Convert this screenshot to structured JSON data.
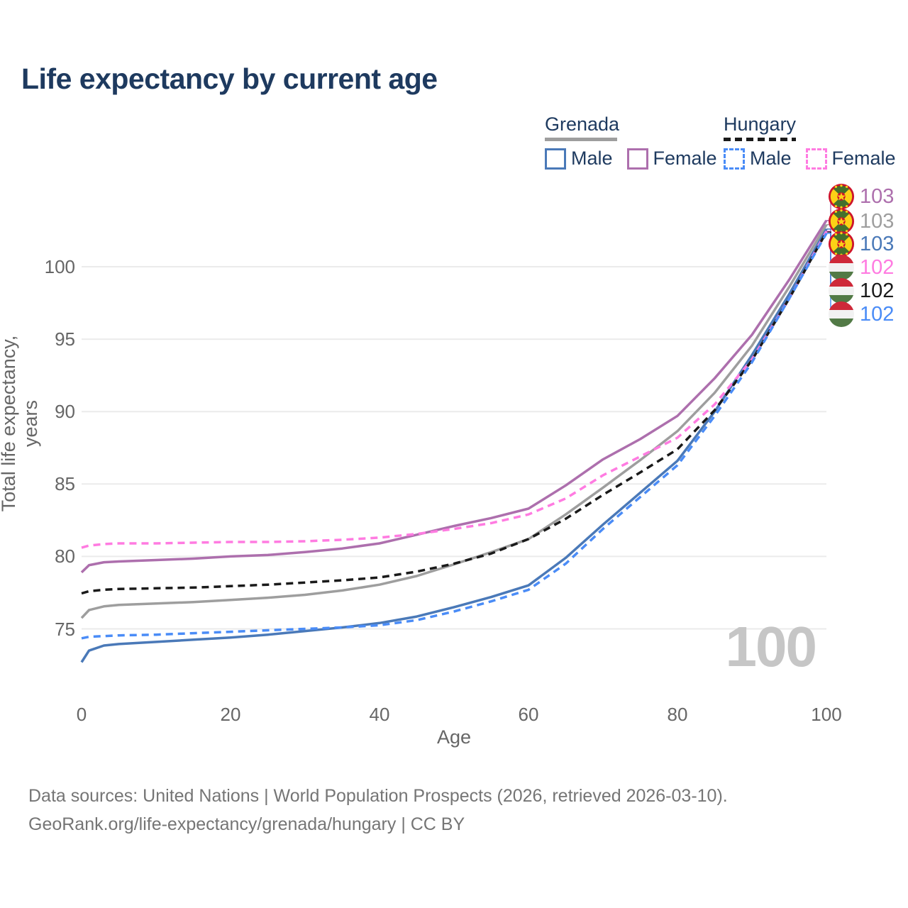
{
  "header": {
    "title": "Life expectancy by current age"
  },
  "legend": {
    "groups": [
      {
        "country": "Grenada",
        "underline_style": "solid",
        "underline_color": "#9e9e9e",
        "items": [
          {
            "label": "Male",
            "color": "#4a79b8",
            "dash": false
          },
          {
            "label": "Female",
            "color": "#ad6fad",
            "dash": false
          }
        ]
      },
      {
        "country": "Hungary",
        "underline_style": "dashed",
        "underline_color": "#1a1a1a",
        "items": [
          {
            "label": "Male",
            "color": "#4a8cf7",
            "dash": true
          },
          {
            "label": "Female",
            "color": "#ff7be1",
            "dash": true
          }
        ]
      }
    ]
  },
  "watermark": {
    "age_counter": "100"
  },
  "footer": {
    "line1": "Data sources: United Nations | World Population Prospects (2026, retrieved 2026-03-10).",
    "line2": "GeoRank.org/life-expectancy/grenada/hungary | CC BY"
  },
  "chart_data": {
    "type": "line",
    "title": "Life expectancy by current age",
    "xlabel": "Age",
    "ylabel": "Total life expectancy, years",
    "xlim": [
      0,
      100
    ],
    "ylim": [
      72,
      104
    ],
    "x_ticks": [
      0,
      20,
      40,
      60,
      80,
      100
    ],
    "y_ticks": [
      75,
      80,
      85,
      90,
      95,
      100
    ],
    "grid": "horizontal-only",
    "legend_position": "top-right",
    "ages": [
      0,
      1,
      3,
      5,
      10,
      15,
      20,
      25,
      30,
      35,
      40,
      45,
      50,
      55,
      60,
      65,
      70,
      75,
      80,
      85,
      90,
      95,
      100
    ],
    "series": [
      {
        "name": "Grenada Female",
        "country": "Grenada",
        "sex": "Female",
        "style": "solid",
        "color": "#ad6fad",
        "end_label": "103",
        "flag": "grenada",
        "values": [
          78.9,
          79.4,
          79.6,
          79.65,
          79.75,
          79.85,
          80.0,
          80.1,
          80.3,
          80.55,
          80.9,
          81.5,
          82.1,
          82.65,
          83.3,
          84.9,
          86.7,
          88.1,
          89.7,
          92.3,
          95.3,
          99.1,
          103.2
        ]
      },
      {
        "name": "Grenada (both sexes)",
        "country": "Grenada",
        "sex": "All",
        "style": "solid",
        "color": "#9e9e9e",
        "end_label": "103",
        "flag": "grenada",
        "values": [
          75.75,
          76.3,
          76.55,
          76.65,
          76.75,
          76.85,
          77.0,
          77.15,
          77.35,
          77.65,
          78.05,
          78.65,
          79.45,
          80.3,
          81.2,
          82.9,
          84.75,
          86.65,
          88.65,
          91.3,
          94.55,
          98.6,
          102.9
        ]
      },
      {
        "name": "Grenada Male",
        "country": "Grenada",
        "sex": "Male",
        "style": "solid",
        "color": "#4a79b8",
        "end_label": "103",
        "flag": "grenada",
        "values": [
          72.7,
          73.5,
          73.85,
          73.95,
          74.1,
          74.25,
          74.4,
          74.6,
          74.85,
          75.1,
          75.4,
          75.85,
          76.5,
          77.2,
          78.0,
          79.9,
          82.2,
          84.4,
          86.6,
          90.0,
          93.9,
          98.1,
          102.6
        ]
      },
      {
        "name": "Hungary Female",
        "country": "Hungary",
        "sex": "Female",
        "style": "dashed",
        "color": "#ff7be1",
        "end_label": "102",
        "flag": "hungary",
        "values": [
          80.6,
          80.75,
          80.85,
          80.9,
          80.9,
          80.95,
          81.0,
          81.0,
          81.05,
          81.15,
          81.3,
          81.55,
          81.9,
          82.3,
          82.9,
          84.0,
          85.6,
          86.9,
          88.2,
          90.5,
          93.6,
          97.8,
          102.45
        ]
      },
      {
        "name": "Hungary (both sexes)",
        "country": "Hungary",
        "sex": "All",
        "style": "dashed",
        "color": "#1a1a1a",
        "end_label": "102",
        "flag": "hungary",
        "values": [
          77.45,
          77.6,
          77.7,
          77.75,
          77.8,
          77.85,
          77.95,
          78.05,
          78.2,
          78.35,
          78.55,
          78.95,
          79.5,
          80.2,
          81.2,
          82.6,
          84.25,
          85.8,
          87.4,
          90.1,
          93.55,
          97.8,
          102.4
        ]
      },
      {
        "name": "Hungary Male",
        "country": "Hungary",
        "sex": "Male",
        "style": "dashed",
        "color": "#4a8cf7",
        "end_label": "102",
        "flag": "hungary",
        "values": [
          74.35,
          74.45,
          74.5,
          74.55,
          74.6,
          74.7,
          74.8,
          74.9,
          75.0,
          75.1,
          75.25,
          75.6,
          76.2,
          76.9,
          77.7,
          79.5,
          81.9,
          84.1,
          86.3,
          89.7,
          93.4,
          97.8,
          102.3
        ]
      }
    ]
  }
}
